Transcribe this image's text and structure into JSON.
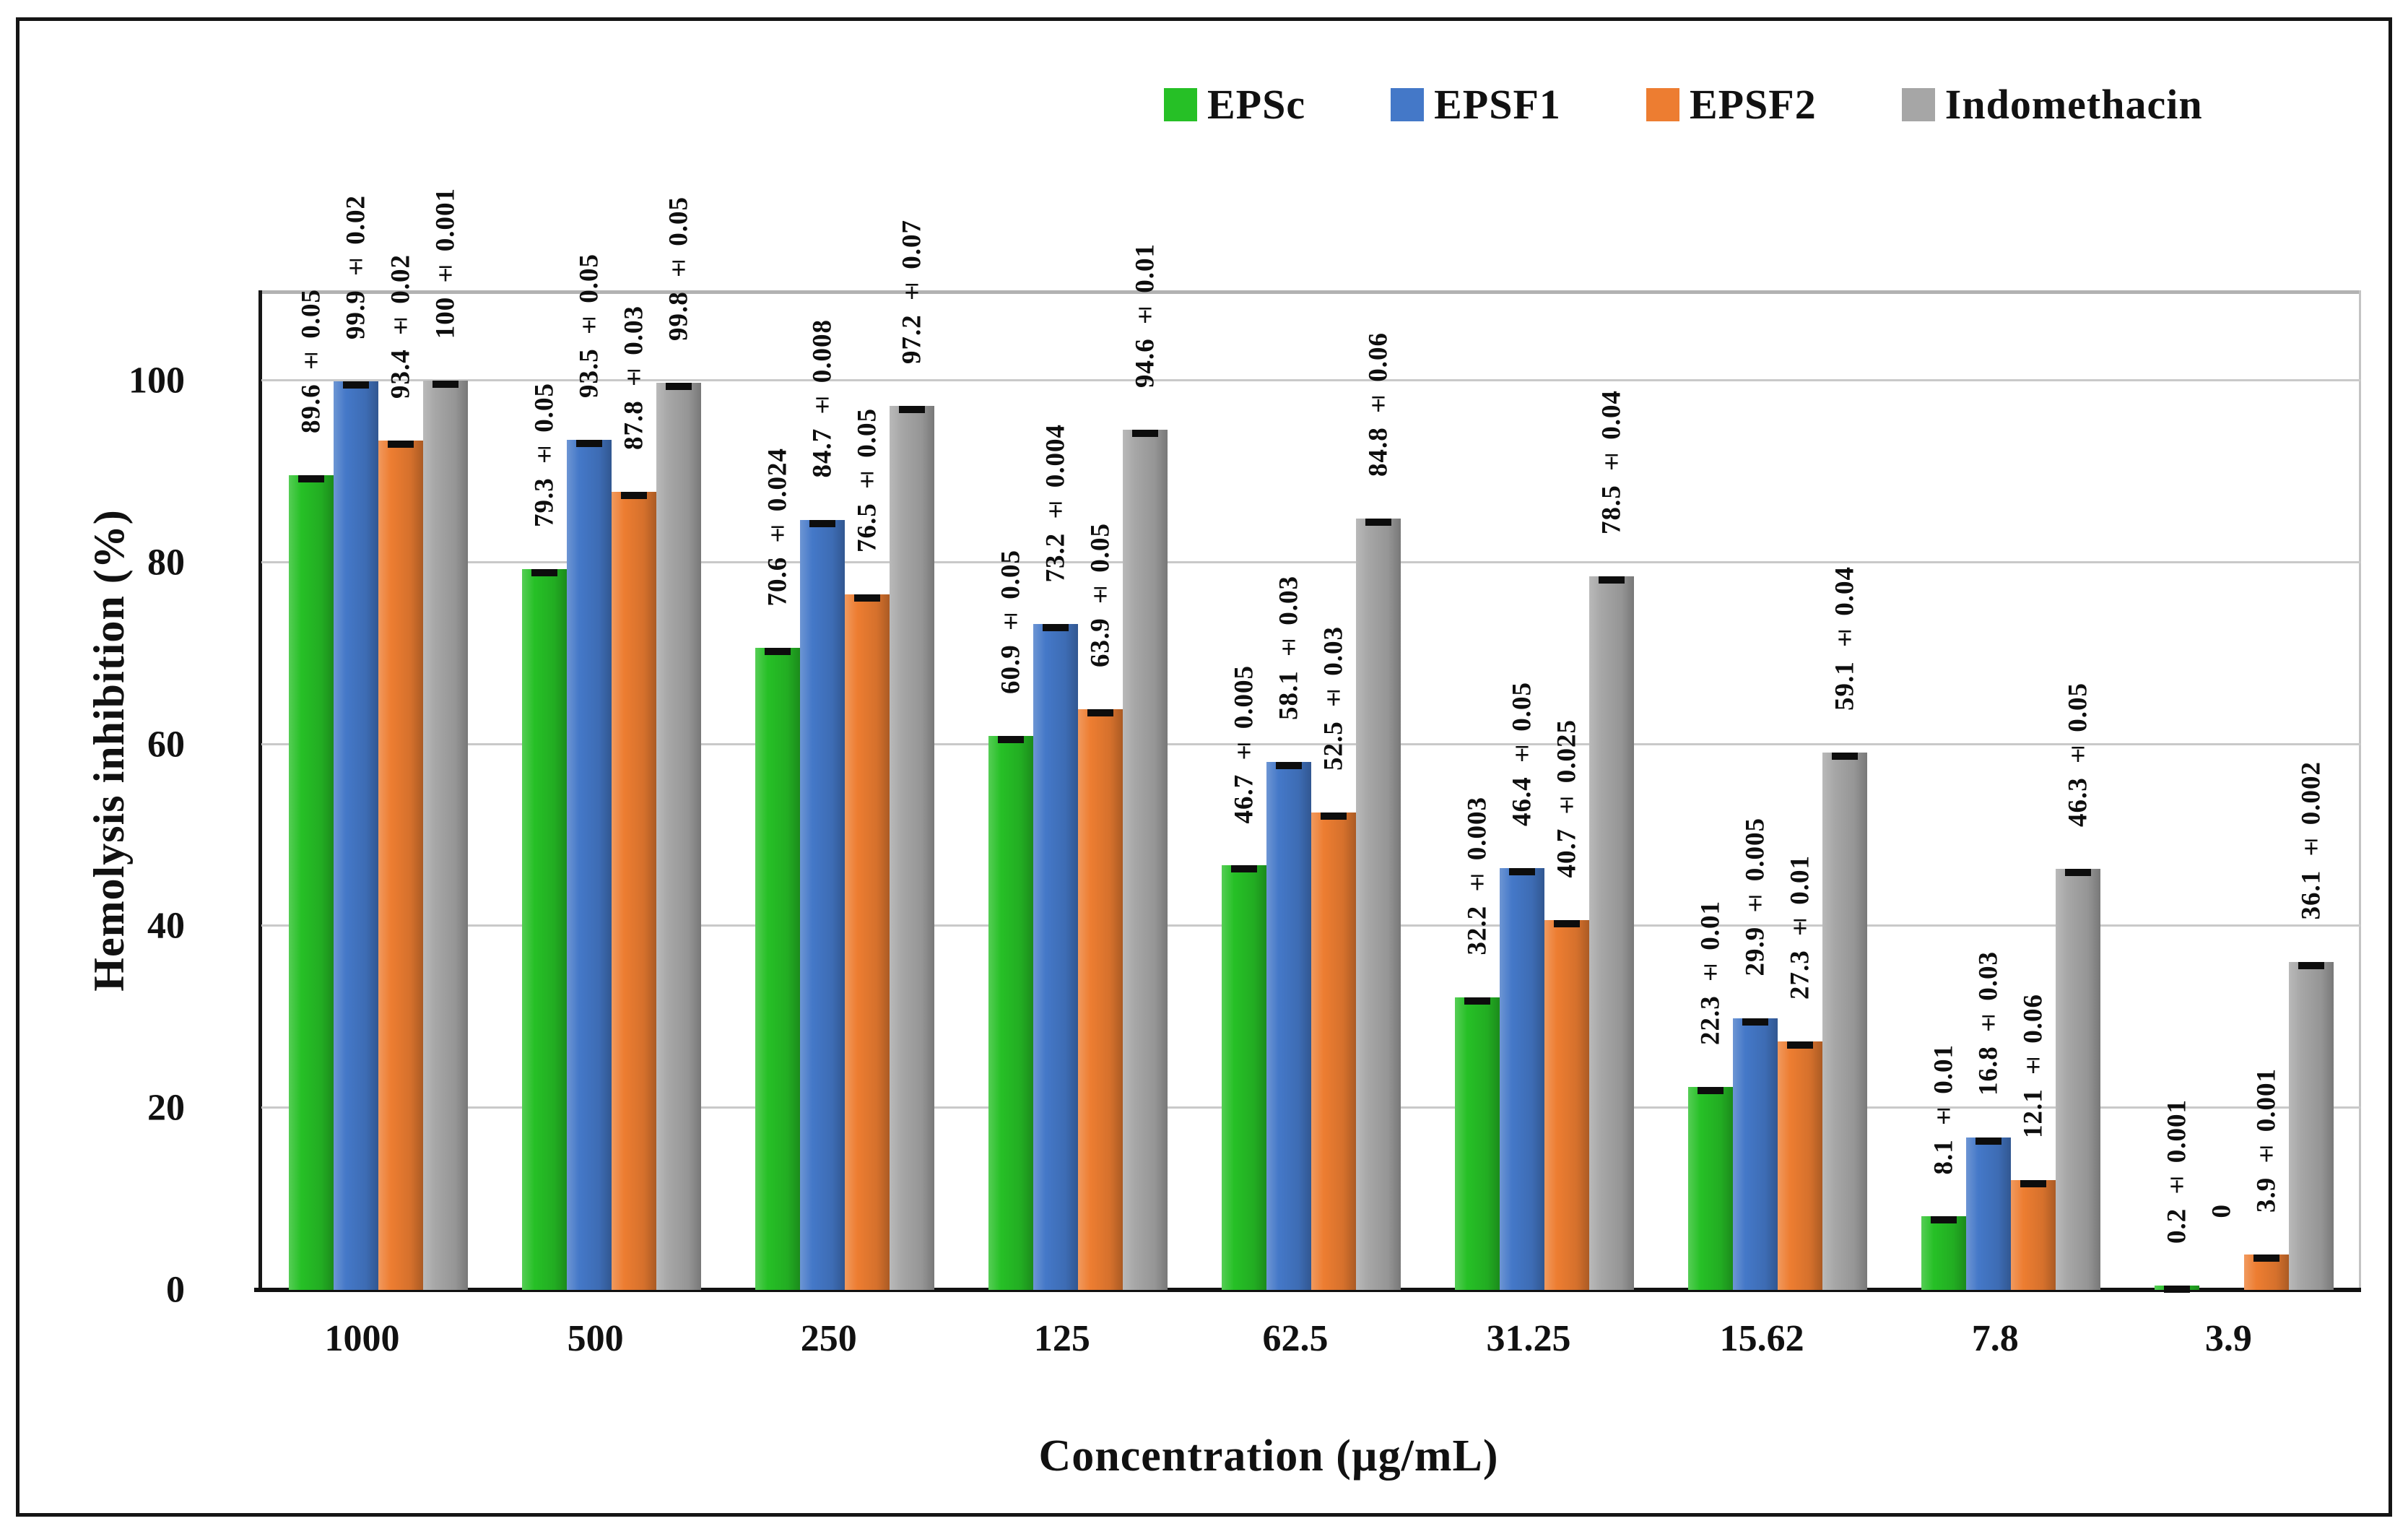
{
  "chart_data": {
    "type": "bar",
    "title": "",
    "xlabel": "Concentration (µg/mL)",
    "ylabel": "Hemolysis inhibition (%)",
    "categories": [
      "1000",
      "500",
      "250",
      "125",
      "62.5",
      "31.25",
      "15.62",
      "7.8",
      "3.9"
    ],
    "series": [
      {
        "name": "EPSc",
        "color": "#26c026",
        "values": [
          89.6,
          79.3,
          70.6,
          60.9,
          46.7,
          32.2,
          22.3,
          8.1,
          0.2
        ],
        "labels": [
          "89.6 ± 0.05",
          "79.3 ± 0.05",
          "70.6 ± 0.024",
          "60.9 ± 0.05",
          "46.7 ± 0.005",
          "32.2 ± 0.003",
          "22.3 ± 0.01",
          "8.1 ± 0.01",
          "0.2 ± 0.001"
        ]
      },
      {
        "name": "EPSF1",
        "color": "#4478c8",
        "values": [
          99.9,
          93.5,
          84.7,
          73.2,
          58.1,
          46.4,
          29.9,
          16.8,
          0
        ],
        "labels": [
          "99.9 ± 0.02",
          "93.5 ± 0.05",
          "84.7 ± 0.008",
          "73.2 ± 0.004",
          "58.1 ± 0.03",
          "46.4 ± 0.05",
          "29.9 ± 0.005",
          "16.8 ± 0.03",
          "0"
        ]
      },
      {
        "name": "EPSF2",
        "color": "#ed7d31",
        "values": [
          93.4,
          87.8,
          76.5,
          63.9,
          52.5,
          40.7,
          27.3,
          12.1,
          3.9
        ],
        "labels": [
          "93.4 ± 0.02",
          "87.8 ± 0.03",
          "76.5 ± 0.05",
          "63.9 ± 0.05",
          "52.5 ± 0.03",
          "40.7 ± 0.025",
          "27.3 ± 0.01",
          "12.1 ± 0.06",
          "3.9 ± 0.001"
        ]
      },
      {
        "name": "Indomethacin",
        "color": "#a6a6a6",
        "values": [
          100,
          99.8,
          97.2,
          94.6,
          84.8,
          78.5,
          59.1,
          46.3,
          36.1
        ],
        "labels": [
          "100 ± 0.001",
          "99.8 ± 0.05",
          "97.2 ± 0.07",
          "94.6 ± 0.01",
          "84.8 ± 0.06",
          "78.5 ± 0.04",
          "59.1 ± 0.04",
          "46.3 ± 0.05",
          "36.1 ± 0.002"
        ]
      }
    ],
    "yticks": [
      0,
      20,
      40,
      60,
      80,
      100
    ],
    "ylim": [
      0,
      110
    ],
    "grid": true,
    "legend_position": "top-right",
    "error_bars": true,
    "error_bar_color": "#0d0d0d",
    "bar_label_rotation": 90
  }
}
